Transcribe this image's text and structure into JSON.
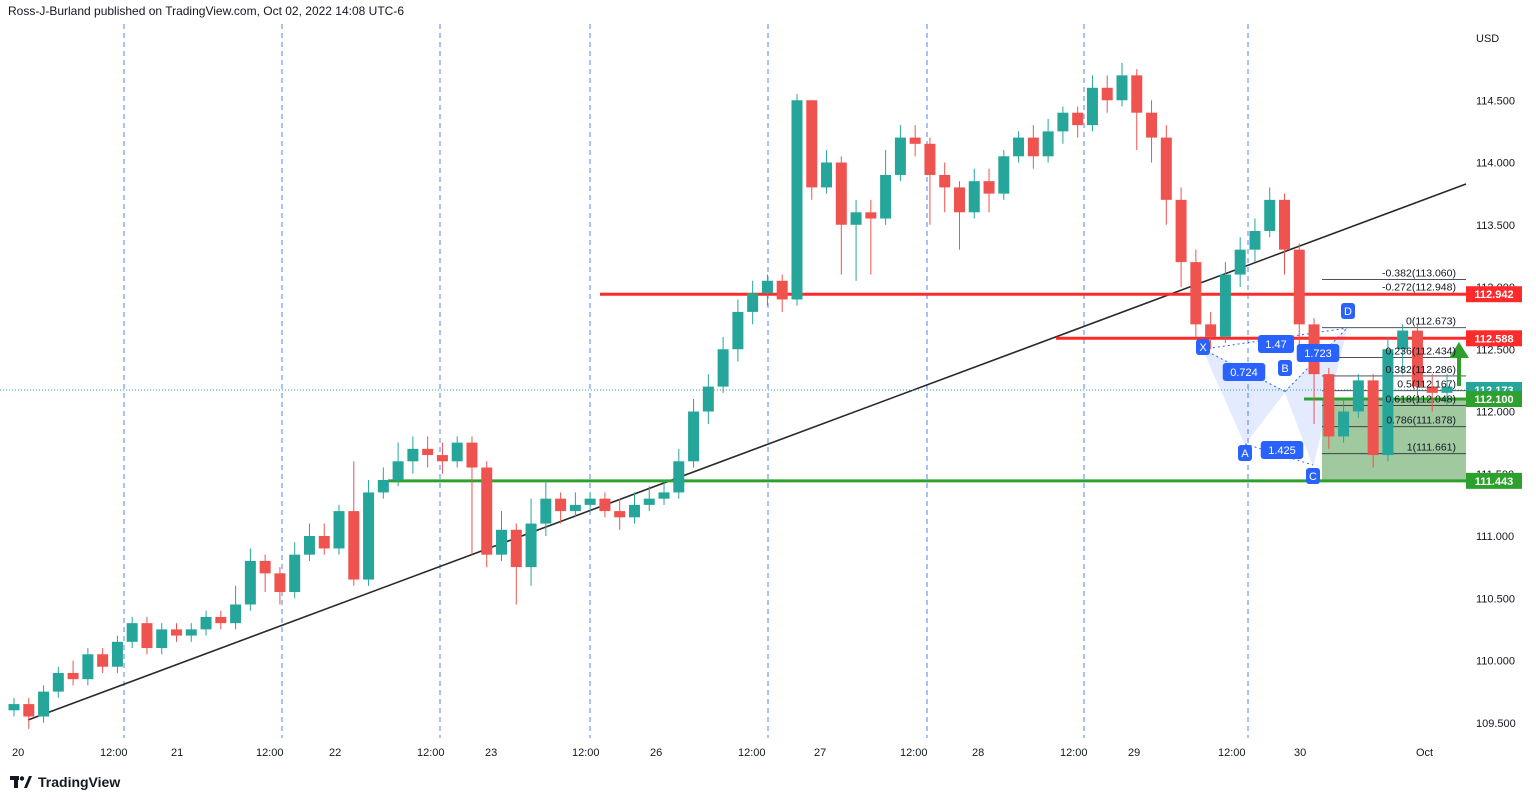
{
  "publisher": "Ross-J-Burland published on TradingView.com, Oct 02, 2022 14:08 UTC-6",
  "brand": "TradingView",
  "chart_data": {
    "type": "candlestick",
    "currency": "USD",
    "ylim": [
      109.4,
      114.9
    ],
    "y_ticks": [
      "114.500",
      "114.000",
      "113.500",
      "113.000",
      "112.500",
      "112.000",
      "111.500",
      "111.000",
      "110.500",
      "110.000",
      "109.500"
    ],
    "x_ticks": [
      "20",
      "12:00",
      "21",
      "12:00",
      "22",
      "12:00",
      "23",
      "12:00",
      "26",
      "12:00",
      "27",
      "12:00",
      "28",
      "12:00",
      "29",
      "12:00",
      "30",
      "Oct"
    ],
    "colors": {
      "up": "#26a69a",
      "down": "#ef5350",
      "resistance": "#ff2a2a",
      "support": "#2ea02e",
      "pattern": "#2962ff",
      "trendline": "#2a2a2a",
      "grid_dashed": "#2962ff",
      "fib_zone": "#8fbf8f"
    },
    "price_levels": [
      {
        "label": "112.942",
        "value": 112.942,
        "kind": "resistance"
      },
      {
        "label": "112.588",
        "value": 112.588,
        "kind": "resistance"
      },
      {
        "label": "112.173",
        "value": 112.173,
        "kind": "current"
      },
      {
        "label": "112.100",
        "value": 112.1,
        "kind": "support"
      },
      {
        "label": "111.443",
        "value": 111.443,
        "kind": "support"
      }
    ],
    "fibonacci": [
      {
        "label": "-0.382(113.060)",
        "value": 113.06
      },
      {
        "label": "-0.272(112.948)",
        "value": 112.948
      },
      {
        "label": "0(112.673)",
        "value": 112.673
      },
      {
        "label": "0.236(112.434)",
        "value": 112.434
      },
      {
        "label": "0.382(112.286)",
        "value": 112.286
      },
      {
        "label": "0.5(112.167)",
        "value": 112.167
      },
      {
        "label": "0.618(112.048)",
        "value": 112.048
      },
      {
        "label": "0.786(111.878)",
        "value": 111.878
      },
      {
        "label": "1(111.661)",
        "value": 111.661
      }
    ],
    "harmonic_pattern": {
      "points": [
        "X",
        "A",
        "B",
        "C",
        "D"
      ],
      "ratios": [
        "0.724",
        "1.47",
        "1.425",
        "1.723"
      ]
    },
    "candles": [
      [
        109.6,
        109.65,
        109.7,
        109.55
      ],
      [
        109.65,
        109.55,
        109.7,
        109.45
      ],
      [
        109.55,
        109.75,
        109.8,
        109.5
      ],
      [
        109.75,
        109.9,
        109.95,
        109.7
      ],
      [
        109.9,
        109.85,
        110.0,
        109.8
      ],
      [
        109.85,
        110.05,
        110.1,
        109.8
      ],
      [
        110.05,
        109.95,
        110.1,
        109.9
      ],
      [
        109.95,
        110.15,
        110.2,
        109.9
      ],
      [
        110.15,
        110.3,
        110.35,
        110.1
      ],
      [
        110.3,
        110.1,
        110.35,
        110.05
      ],
      [
        110.1,
        110.25,
        110.3,
        110.05
      ],
      [
        110.25,
        110.2,
        110.3,
        110.15
      ],
      [
        110.2,
        110.25,
        110.3,
        110.15
      ],
      [
        110.25,
        110.35,
        110.4,
        110.2
      ],
      [
        110.35,
        110.3,
        110.4,
        110.25
      ],
      [
        110.3,
        110.45,
        110.6,
        110.25
      ],
      [
        110.45,
        110.8,
        110.9,
        110.4
      ],
      [
        110.8,
        110.7,
        110.85,
        110.55
      ],
      [
        110.7,
        110.55,
        110.75,
        110.45
      ],
      [
        110.55,
        110.85,
        110.95,
        110.5
      ],
      [
        110.85,
        111.0,
        111.1,
        110.8
      ],
      [
        111.0,
        110.9,
        111.1,
        110.85
      ],
      [
        110.9,
        111.2,
        111.25,
        110.85
      ],
      [
        111.2,
        110.65,
        111.6,
        110.6
      ],
      [
        110.65,
        111.35,
        111.45,
        110.6
      ],
      [
        111.35,
        111.45,
        111.55,
        111.3
      ],
      [
        111.45,
        111.6,
        111.75,
        111.4
      ],
      [
        111.6,
        111.7,
        111.8,
        111.5
      ],
      [
        111.7,
        111.65,
        111.8,
        111.55
      ],
      [
        111.65,
        111.6,
        111.75,
        111.5
      ],
      [
        111.6,
        111.75,
        111.8,
        111.55
      ],
      [
        111.75,
        111.55,
        111.8,
        110.85
      ],
      [
        111.55,
        110.85,
        111.6,
        110.75
      ],
      [
        110.85,
        111.05,
        111.2,
        110.8
      ],
      [
        111.05,
        110.75,
        111.1,
        110.45
      ],
      [
        110.75,
        111.1,
        111.3,
        110.6
      ],
      [
        111.1,
        111.3,
        111.45,
        111.0
      ],
      [
        111.3,
        111.2,
        111.35,
        111.1
      ],
      [
        111.2,
        111.25,
        111.35,
        111.15
      ],
      [
        111.25,
        111.3,
        111.35,
        111.2
      ],
      [
        111.3,
        111.2,
        111.35,
        111.15
      ],
      [
        111.2,
        111.15,
        111.3,
        111.05
      ],
      [
        111.15,
        111.25,
        111.35,
        111.1
      ],
      [
        111.25,
        111.3,
        111.4,
        111.2
      ],
      [
        111.3,
        111.35,
        111.45,
        111.25
      ],
      [
        111.35,
        111.6,
        111.7,
        111.3
      ],
      [
        111.6,
        112.0,
        112.1,
        111.55
      ],
      [
        112.0,
        112.2,
        112.3,
        111.9
      ],
      [
        112.2,
        112.5,
        112.6,
        112.15
      ],
      [
        112.5,
        112.8,
        112.9,
        112.4
      ],
      [
        112.8,
        112.95,
        113.05,
        112.7
      ],
      [
        112.95,
        113.05,
        113.1,
        112.85
      ],
      [
        113.05,
        112.9,
        113.1,
        112.8
      ],
      [
        112.9,
        114.5,
        114.55,
        112.85
      ],
      [
        114.5,
        113.8,
        114.5,
        113.7
      ],
      [
        113.8,
        114.0,
        114.1,
        113.75
      ],
      [
        114.0,
        113.5,
        114.05,
        113.1
      ],
      [
        113.5,
        113.6,
        113.7,
        113.05
      ],
      [
        113.6,
        113.55,
        113.7,
        113.1
      ],
      [
        113.55,
        113.9,
        114.1,
        113.5
      ],
      [
        113.9,
        114.2,
        114.3,
        113.85
      ],
      [
        114.2,
        114.15,
        114.3,
        114.05
      ],
      [
        114.15,
        113.9,
        114.2,
        113.5
      ],
      [
        113.9,
        113.8,
        114.0,
        113.6
      ],
      [
        113.8,
        113.6,
        113.85,
        113.3
      ],
      [
        113.6,
        113.85,
        113.95,
        113.55
      ],
      [
        113.85,
        113.75,
        113.95,
        113.6
      ],
      [
        113.75,
        114.05,
        114.1,
        113.7
      ],
      [
        114.05,
        114.2,
        114.25,
        114.0
      ],
      [
        114.2,
        114.05,
        114.3,
        113.95
      ],
      [
        114.05,
        114.25,
        114.35,
        114.0
      ],
      [
        114.25,
        114.4,
        114.45,
        114.15
      ],
      [
        114.4,
        114.3,
        114.45,
        114.2
      ],
      [
        114.3,
        114.6,
        114.7,
        114.25
      ],
      [
        114.6,
        114.5,
        114.7,
        114.4
      ],
      [
        114.5,
        114.7,
        114.8,
        114.45
      ],
      [
        114.7,
        114.4,
        114.75,
        114.1
      ],
      [
        114.4,
        114.2,
        114.5,
        114.0
      ],
      [
        114.2,
        113.7,
        114.3,
        113.5
      ],
      [
        113.7,
        113.2,
        113.8,
        113.0
      ],
      [
        113.2,
        112.7,
        113.3,
        112.6
      ],
      [
        112.7,
        112.6,
        112.8,
        112.5
      ],
      [
        112.6,
        113.1,
        113.2,
        112.55
      ],
      [
        113.1,
        113.3,
        113.4,
        113.0
      ],
      [
        113.3,
        113.45,
        113.55,
        113.2
      ],
      [
        113.45,
        113.7,
        113.8,
        113.4
      ],
      [
        113.7,
        113.3,
        113.75,
        113.1
      ],
      [
        113.3,
        112.7,
        113.35,
        112.4
      ],
      [
        112.7,
        112.3,
        112.75,
        111.9
      ],
      [
        112.3,
        111.8,
        112.35,
        111.7
      ],
      [
        111.8,
        112.0,
        112.1,
        111.75
      ],
      [
        112.0,
        112.25,
        112.3,
        111.95
      ],
      [
        112.25,
        111.65,
        112.3,
        111.55
      ],
      [
        111.65,
        112.5,
        112.6,
        111.6
      ],
      [
        112.5,
        112.65,
        112.7,
        112.3
      ],
      [
        112.65,
        112.2,
        112.7,
        112.05
      ],
      [
        112.2,
        112.15,
        112.3,
        112.0
      ],
      [
        112.15,
        112.2,
        112.3,
        112.05
      ]
    ]
  }
}
